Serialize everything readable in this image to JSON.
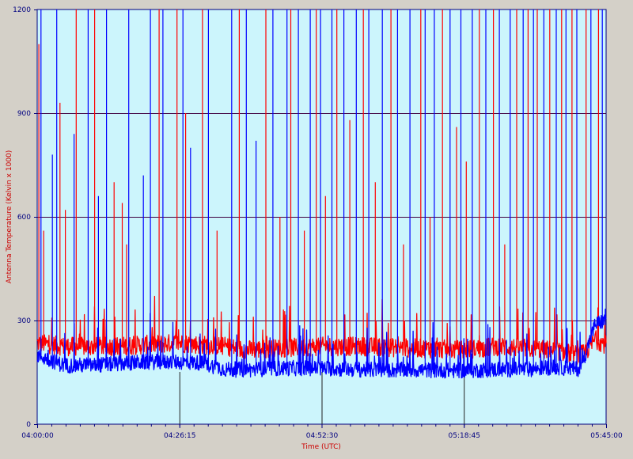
{
  "chart_data": {
    "type": "line",
    "xlabel": "Time (UTC)",
    "ylabel": "Antenna Temperature (Kelvin x 1000)",
    "ylim": [
      0,
      1200
    ],
    "y_ticks": [
      0,
      300,
      600,
      900,
      1200
    ],
    "x_ticks": [
      "04:00:00",
      "04:26:15",
      "04:52:30",
      "05:18:45",
      "05:45:00"
    ],
    "x_range_minutes": [
      0,
      105
    ],
    "grid": true,
    "legend": "none",
    "background_color": "#ccf5fc",
    "axis_color": "#000080",
    "grid_color": "#400040",
    "series": [
      {
        "color": "#ff0000",
        "baseline": [
          [
            0,
            235
          ],
          [
            5,
            225
          ],
          [
            10,
            225
          ],
          [
            15,
            225
          ],
          [
            20,
            230
          ],
          [
            26.25,
            235
          ],
          [
            30,
            230
          ],
          [
            35,
            225
          ],
          [
            38,
            215
          ],
          [
            45,
            220
          ],
          [
            52.5,
            225
          ],
          [
            60,
            225
          ],
          [
            65,
            222
          ],
          [
            70,
            220
          ],
          [
            78.75,
            215
          ],
          [
            85,
            225
          ],
          [
            90,
            220
          ],
          [
            95,
            215
          ],
          [
            100,
            200
          ],
          [
            101,
            205
          ],
          [
            103,
            245
          ],
          [
            105,
            230
          ]
        ],
        "spikes": [
          [
            0.3,
            1100
          ],
          [
            1.2,
            560
          ],
          [
            4.2,
            930
          ],
          [
            5.2,
            620
          ],
          [
            7.2,
            1200
          ],
          [
            10.6,
            1200
          ],
          [
            14.2,
            700
          ],
          [
            15.7,
            640
          ],
          [
            16.5,
            520
          ],
          [
            22.5,
            1200
          ],
          [
            25.8,
            1200
          ],
          [
            27.4,
            900
          ],
          [
            30.5,
            1200
          ],
          [
            33.2,
            560
          ],
          [
            37.3,
            1200
          ],
          [
            42.2,
            1200
          ],
          [
            44.8,
            600
          ],
          [
            46.8,
            1200
          ],
          [
            49.3,
            560
          ],
          [
            51.5,
            1200
          ],
          [
            53.2,
            660
          ],
          [
            55.3,
            1200
          ],
          [
            57.7,
            880
          ],
          [
            60.2,
            1200
          ],
          [
            62.4,
            700
          ],
          [
            65.3,
            1200
          ],
          [
            67.6,
            520
          ],
          [
            70.8,
            1200
          ],
          [
            72.5,
            600
          ],
          [
            74.8,
            1200
          ],
          [
            77.4,
            860
          ],
          [
            79.2,
            760
          ],
          [
            81.6,
            1200
          ],
          [
            84.2,
            1200
          ],
          [
            86.3,
            520
          ],
          [
            88.5,
            1200
          ],
          [
            90.6,
            1200
          ],
          [
            92.3,
            1200
          ],
          [
            94.6,
            1200
          ],
          [
            96.8,
            1200
          ],
          [
            98.7,
            1200
          ],
          [
            101.3,
            1200
          ],
          [
            103.6,
            1200
          ]
        ]
      },
      {
        "color": "#0000ff",
        "baseline": [
          [
            0,
            200
          ],
          [
            5,
            170
          ],
          [
            10,
            170
          ],
          [
            15,
            175
          ],
          [
            20,
            180
          ],
          [
            26.25,
            180
          ],
          [
            30,
            178
          ],
          [
            35,
            158
          ],
          [
            40,
            158
          ],
          [
            45,
            162
          ],
          [
            52.5,
            162
          ],
          [
            60,
            158
          ],
          [
            65,
            157
          ],
          [
            70,
            157
          ],
          [
            78.75,
            155
          ],
          [
            85,
            158
          ],
          [
            90,
            158
          ],
          [
            95,
            165
          ],
          [
            100,
            160
          ],
          [
            101,
            195
          ],
          [
            103,
            290
          ],
          [
            105,
            300
          ]
        ],
        "spikes": [
          [
            0.7,
            1200
          ],
          [
            2.8,
            780
          ],
          [
            3.6,
            1200
          ],
          [
            6.8,
            840
          ],
          [
            9.4,
            1200
          ],
          [
            11.3,
            660
          ],
          [
            12.8,
            1200
          ],
          [
            16.9,
            1200
          ],
          [
            19.6,
            720
          ],
          [
            20.9,
            1200
          ],
          [
            23.2,
            1200
          ],
          [
            26.9,
            1200
          ],
          [
            28.3,
            800
          ],
          [
            31.6,
            1200
          ],
          [
            35.9,
            1200
          ],
          [
            38.6,
            1200
          ],
          [
            40.4,
            820
          ],
          [
            43.5,
            1200
          ],
          [
            46.1,
            1200
          ],
          [
            48.2,
            1200
          ],
          [
            50.4,
            1200
          ],
          [
            52.3,
            1200
          ],
          [
            54.4,
            1200
          ],
          [
            56.6,
            1200
          ],
          [
            58.9,
            1200
          ],
          [
            61.2,
            1200
          ],
          [
            63.7,
            1200
          ],
          [
            66.5,
            1200
          ],
          [
            68.8,
            1200
          ],
          [
            71.6,
            1200
          ],
          [
            73.3,
            1200
          ],
          [
            76.2,
            1200
          ],
          [
            78.2,
            1200
          ],
          [
            80.3,
            1200
          ],
          [
            82.8,
            1200
          ],
          [
            85.3,
            1200
          ],
          [
            87.3,
            1200
          ],
          [
            89.7,
            1200
          ],
          [
            91.6,
            1200
          ],
          [
            93.5,
            1200
          ],
          [
            95.8,
            1200
          ],
          [
            97.6,
            1200
          ],
          [
            99.6,
            1200
          ],
          [
            102.2,
            1200
          ],
          [
            104.3,
            1200
          ]
        ]
      }
    ]
  }
}
